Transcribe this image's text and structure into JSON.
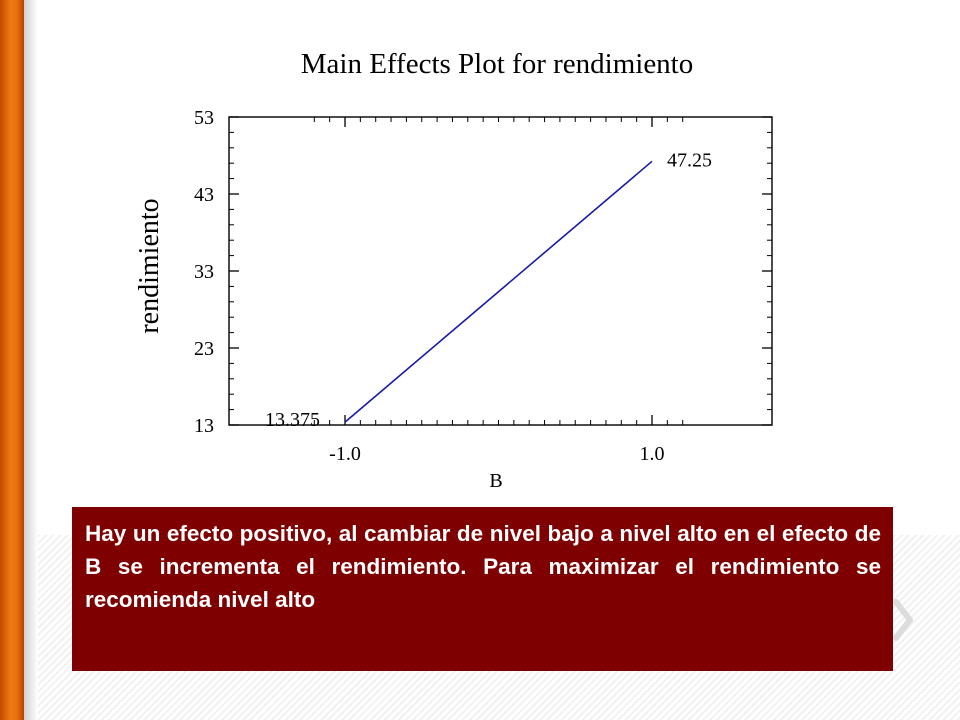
{
  "colors": {
    "accent": "#f07a10",
    "box_bg": "#7f0000",
    "box_text": "#ffffff",
    "line": "#1a1aa8"
  },
  "chart_data": {
    "type": "line",
    "title": "Main Effects Plot for rendimiento",
    "xlabel": "B",
    "ylabel": "rendimiento",
    "x": [
      -1.0,
      1.0
    ],
    "series": [
      {
        "values": [
          13.375,
          47.25
        ]
      }
    ],
    "data_labels": [
      "13.375",
      "47.25"
    ],
    "xticks": [
      -1.0,
      1.0
    ],
    "xtick_labels": [
      "-1.0",
      "1.0"
    ],
    "yticks": [
      13,
      23,
      33,
      43,
      53
    ],
    "ytick_labels": [
      "13",
      "23",
      "33",
      "43",
      "53"
    ],
    "ylim": [
      13,
      53
    ],
    "grid": false
  },
  "callout": {
    "text": "Hay un efecto positivo, al cambiar de nivel bajo a nivel alto en el efecto de B se incrementa el rendimiento. Para maximizar el rendimiento se recomienda nivel alto"
  }
}
